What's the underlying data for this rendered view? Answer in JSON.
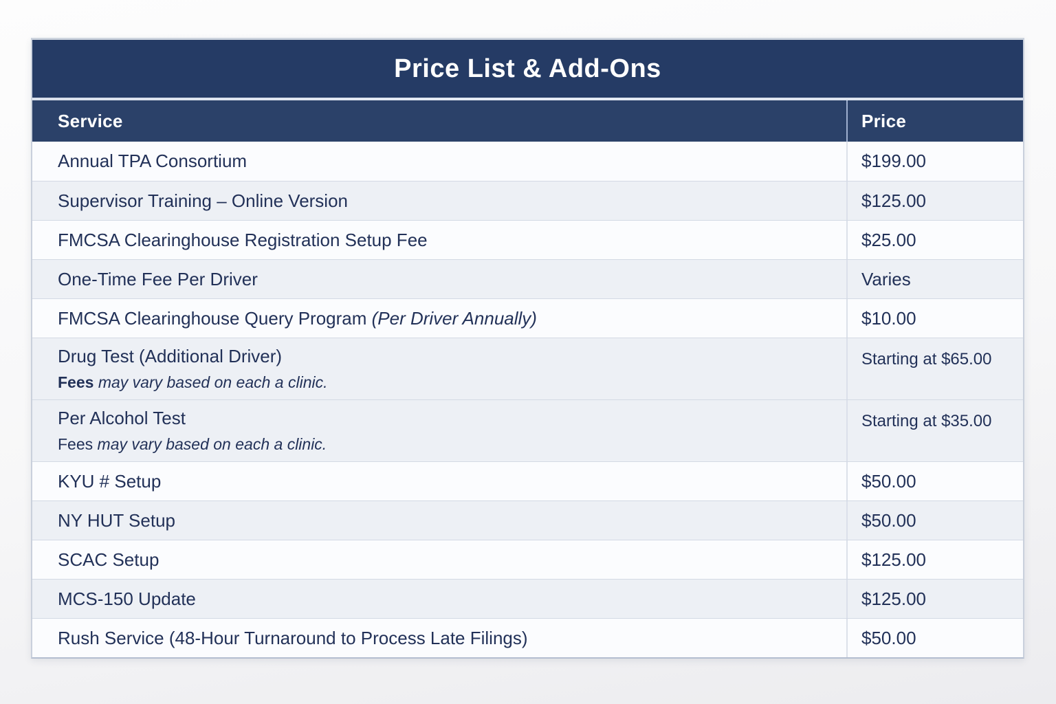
{
  "colors": {
    "title_navy": "#253b65",
    "subheader_navy": "#2b4169"
  },
  "table": {
    "title": "Price List & Add-Ons",
    "columns": {
      "service": "Service",
      "price": "Price"
    },
    "rows": [
      {
        "service": [
          {
            "t": "Annual TPA Consortium"
          }
        ],
        "price": "$199.00"
      },
      {
        "service": [
          {
            "t": "Supervisor Training – Online Version"
          }
        ],
        "price": "$125.00"
      },
      {
        "service": [
          {
            "t": "FMCSA Clearinghouse Registration Setup Fee"
          }
        ],
        "price": "$25.00"
      },
      {
        "service": [
          {
            "t": "One-Time Fee Per Driver"
          }
        ],
        "price": "Varies"
      },
      {
        "service": [
          {
            "t": "FMCSA Clearinghouse Query Program "
          },
          {
            "t": "(Per Driver Annually)",
            "i": true
          }
        ],
        "price": "$10.00"
      },
      {
        "service": [
          {
            "t": "Drug Test (Additional Driver)"
          }
        ],
        "note": [
          {
            "t": "Fees",
            "b": true
          },
          {
            "t": " may vary based on each a clinic.",
            "i": true
          }
        ],
        "price": "Starting at $65.00"
      },
      {
        "service": [
          {
            "t": "Per Alcohol Test"
          }
        ],
        "note": [
          {
            "t": "Fees "
          },
          {
            "t": "may vary based on each a clinic.",
            "i": true
          }
        ],
        "price": "Starting at $35.00"
      },
      {
        "service": [
          {
            "t": "KYU # Setup"
          }
        ],
        "price": "$50.00"
      },
      {
        "service": [
          {
            "t": "NY HUT Setup"
          }
        ],
        "price": "$50.00"
      },
      {
        "service": [
          {
            "t": "SCAC Setup"
          }
        ],
        "price": "$125.00"
      },
      {
        "service": [
          {
            "t": "MCS-150 Update"
          }
        ],
        "price": "$125.00"
      },
      {
        "service": [
          {
            "t": "Rush Service (48-Hour Turnaround to Process Late Filings)"
          }
        ],
        "price": "$50.00"
      }
    ]
  }
}
